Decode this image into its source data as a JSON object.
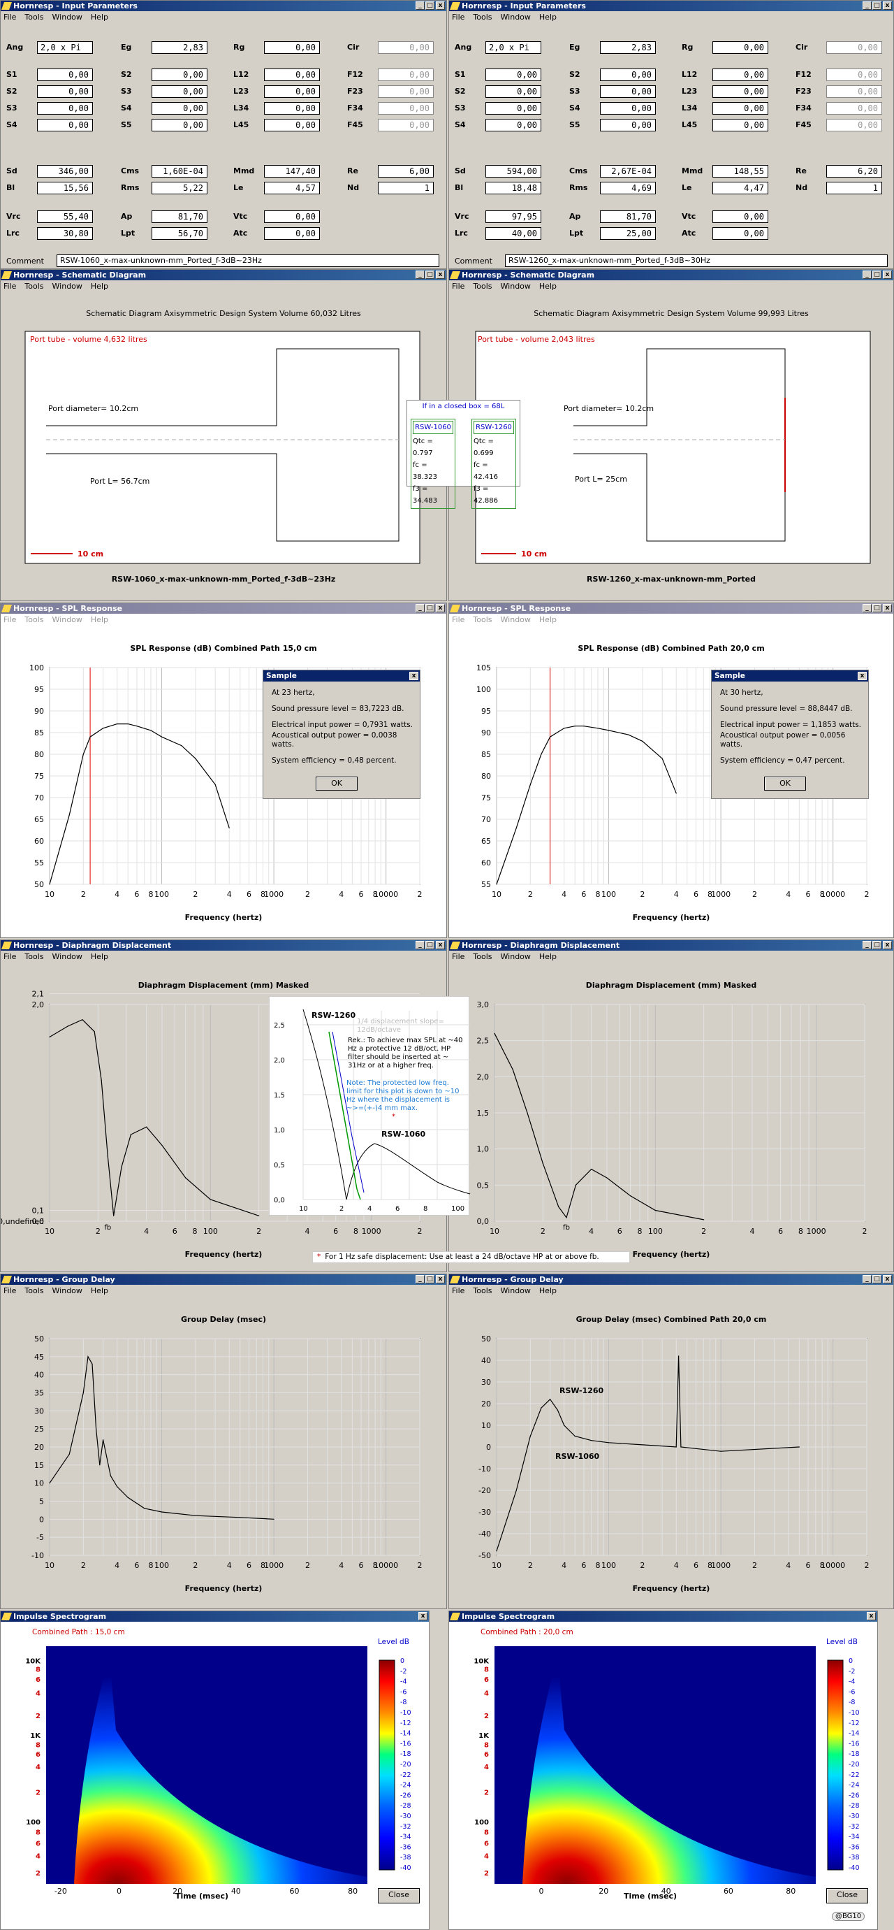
{
  "titles": {
    "input": "Hornresp - Input Parameters",
    "schem": "Hornresp - Schematic Diagram",
    "spl": "Hornresp - SPL Response",
    "disp": "Hornresp - Diaphragm Displacement",
    "gd": "Hornresp - Group Delay",
    "imp": "Impulse Spectrogram"
  },
  "menu": [
    "File",
    "Tools",
    "Window",
    "Help"
  ],
  "params_left": {
    "row1": [
      "Ang",
      "2,0 x Pi",
      "Eg",
      "2,83",
      "Rg",
      "0,00",
      "Cir",
      "0,00"
    ],
    "grid": [
      [
        "S1",
        "0,00",
        "S2",
        "0,00",
        "L12",
        "0,00",
        "F12",
        "0,00"
      ],
      [
        "S2",
        "0,00",
        "S3",
        "0,00",
        "L23",
        "0,00",
        "F23",
        "0,00"
      ],
      [
        "S3",
        "0,00",
        "S4",
        "0,00",
        "L34",
        "0,00",
        "F34",
        "0,00"
      ],
      [
        "S4",
        "0,00",
        "S5",
        "0,00",
        "L45",
        "0,00",
        "F45",
        "0,00"
      ]
    ],
    "drv": [
      [
        "Sd",
        "346,00",
        "Cms",
        "1,60E-04",
        "Mmd",
        "147,40",
        "Re",
        "6,00"
      ],
      [
        "Bl",
        "15,56",
        "Rms",
        "5,22",
        "Le",
        "4,57",
        "Nd",
        "1"
      ]
    ],
    "box": [
      [
        "Vrc",
        "55,40",
        "Ap",
        "81,70",
        "Vtc",
        "0,00"
      ],
      [
        "Lrc",
        "30,80",
        "Lpt",
        "56,70",
        "Atc",
        "0,00"
      ]
    ],
    "comment_label": "Comment",
    "comment": "RSW-1060_x-max-unknown-mm_Ported_f-3dB~23Hz"
  },
  "params_right": {
    "row1": [
      "Ang",
      "2,0 x Pi",
      "Eg",
      "2,83",
      "Rg",
      "0,00",
      "Cir",
      "0,00"
    ],
    "grid": [
      [
        "S1",
        "0,00",
        "S2",
        "0,00",
        "L12",
        "0,00",
        "F12",
        "0,00"
      ],
      [
        "S2",
        "0,00",
        "S3",
        "0,00",
        "L23",
        "0,00",
        "F23",
        "0,00"
      ],
      [
        "S3",
        "0,00",
        "S4",
        "0,00",
        "L34",
        "0,00",
        "F34",
        "0,00"
      ],
      [
        "S4",
        "0,00",
        "S5",
        "0,00",
        "L45",
        "0,00",
        "F45",
        "0,00"
      ]
    ],
    "drv": [
      [
        "Sd",
        "594,00",
        "Cms",
        "2,67E-04",
        "Mmd",
        "148,55",
        "Re",
        "6,20"
      ],
      [
        "Bl",
        "18,48",
        "Rms",
        "4,69",
        "Le",
        "4,47",
        "Nd",
        "1"
      ]
    ],
    "box": [
      [
        "Vrc",
        "97,95",
        "Ap",
        "81,70",
        "Vtc",
        "0,00"
      ],
      [
        "Lrc",
        "40,00",
        "Lpt",
        "25,00",
        "Atc",
        "0,00"
      ]
    ],
    "comment_label": "Comment",
    "comment": "RSW-1260_x-max-unknown-mm_Ported_f-3dB~30Hz"
  },
  "schem_left": {
    "header": "Schematic Diagram   Axisymmetric Design   System Volume 60,032 Litres",
    "port": "Port tube - volume 4,632 litres",
    "diam": "Port diameter=  10.2cm",
    "len": "Port L= 56.7cm",
    "scale": "10 cm",
    "caption": "RSW-1060_x-max-unknown-mm_Ported_f-3dB~23Hz"
  },
  "schem_right": {
    "header": "Schematic Diagram   Axisymmetric Design   System Volume 99,993 Litres",
    "port": "Port tube - volume 2,043 litres",
    "diam": "Port diameter=  10.2cm",
    "len": "Port L= 25cm",
    "scale": "10 cm",
    "caption": "RSW-1260_x-max-unknown-mm_Ported"
  },
  "closed_box": {
    "title": "If in a closed box = 68L",
    "cols": [
      {
        "name": "RSW-1060",
        "qtc": "Qtc = 0.797",
        "fc": "fc = 38.323",
        "f3": "f3 = 34.483"
      },
      {
        "name": "RSW-1260",
        "qtc": "Qtc = 0.699",
        "fc": "fc = 42.416",
        "f3": "f3 = 42.886"
      }
    ]
  },
  "spl_left": {
    "header": "SPL Response (dB)   Combined   Path 15,0 cm",
    "xlabel": "Frequency (hertz)",
    "dialog": {
      "title": "Sample",
      "l1": "At 23 hertz,",
      "l2": "Sound pressure level = 83,7223 dB.",
      "l3": "Electrical input power = 0,7931 watts.",
      "l4": "Acoustical output power = 0,0038 watts.",
      "l5": "System efficiency = 0,48 percent.",
      "ok": "OK"
    }
  },
  "spl_right": {
    "header": "SPL Response (dB)   Combined   Path 20,0 cm",
    "xlabel": "Frequency (hertz)",
    "dialog": {
      "title": "Sample",
      "l1": "At 30 hertz,",
      "l2": "Sound pressure level = 88,8447 dB.",
      "l3": "Electrical input power = 1,1853 watts.",
      "l4": "Acoustical output power = 0,0056 watts.",
      "l5": "System efficiency = 0,47 percent.",
      "ok": "OK"
    }
  },
  "disp_left": {
    "header": "Diaphragm Displacement (mm)   Masked",
    "xlabel": "Frequency (hertz)",
    "fb": "fb"
  },
  "disp_right": {
    "header": "Diaphragm Displacement (mm)   Masked",
    "xlabel": "Frequency (hertz)",
    "fb": "fb"
  },
  "overlay": {
    "l1260": "RSW-1260",
    "l1060": "RSW-1060",
    "slope": "1/4 displacement slope= 12dB/octave",
    "rek": "Rek.: To achieve max SPL at ~40 Hz a protective 12 dB/oct. HP filter should be inserted at ~ 31Hz or at a higher freq.",
    "note": "Note: The protected low freq. limit for this plot is down to ~10 Hz where the displacement is ~>=(+-)4 mm max.",
    "star": "*"
  },
  "footnote_star": "*",
  "footnote": "For 1 Hz safe displacement: Use at least a 24 dB/octave HP at or above fb.",
  "gd_left": {
    "header": "Group Delay (msec)",
    "xlabel": "Frequency (hertz)"
  },
  "gd_right": {
    "header": "Group Delay (msec)   Combined   Path 20,0 cm",
    "xlabel": "Frequency (hertz)",
    "l1260": "RSW-1260",
    "l1060": "RSW-1060"
  },
  "imp_left": {
    "sub": "Combined    Path : 15,0 cm",
    "xlabel": "Time (msec)",
    "level": "Level   dB",
    "close": "Close"
  },
  "imp_right": {
    "sub": "Combined    Path : 20,0 cm",
    "xlabel": "Time (msec)",
    "level": "Level   dB",
    "close": "Close"
  },
  "watermark": "@BG10",
  "colorbar_ticks": [
    "0",
    "-2",
    "-4",
    "-6",
    "-8",
    "-10",
    "-12",
    "-14",
    "-16",
    "-18",
    "-20",
    "-22",
    "-24",
    "-26",
    "-28",
    "-30",
    "-32",
    "-34",
    "-36",
    "-38",
    "-40"
  ],
  "chart_data": [
    {
      "type": "line",
      "title": "SPL Response (dB)",
      "xscale": "log",
      "xlim": [
        10,
        20000
      ],
      "ylim": [
        50,
        100
      ],
      "x": [
        10,
        15,
        20,
        23,
        30,
        40,
        50,
        60,
        80,
        100,
        150,
        200,
        300,
        400
      ],
      "series": [
        {
          "values": [
            50,
            66,
            80,
            84,
            86,
            87,
            87,
            86.5,
            85.5,
            84,
            82,
            79,
            73,
            63
          ]
        }
      ]
    },
    {
      "type": "line",
      "title": "SPL Response (dB)",
      "xscale": "log",
      "xlim": [
        10,
        20000
      ],
      "ylim": [
        55,
        105
      ],
      "x": [
        10,
        15,
        20,
        25,
        30,
        40,
        50,
        60,
        80,
        100,
        150,
        200,
        300,
        400
      ],
      "series": [
        {
          "values": [
            55,
            68,
            78,
            85,
            89,
            91,
            91.5,
            91.5,
            91,
            90.5,
            89.5,
            88,
            84,
            76
          ]
        }
      ]
    },
    {
      "type": "line",
      "title": "Diaphragm Displacement (mm)",
      "xscale": "log",
      "xlim": [
        10,
        2000
      ],
      "ylim": [
        0,
        2
      ],
      "x": [
        10,
        13,
        16,
        19,
        21,
        23,
        25,
        28,
        32,
        40,
        50,
        70,
        100,
        200
      ],
      "series": [
        {
          "values": [
            1.7,
            1.8,
            1.86,
            1.75,
            1.3,
            0.6,
            0.05,
            0.5,
            0.8,
            0.87,
            0.7,
            0.4,
            0.2,
            0.05
          ]
        }
      ]
    },
    {
      "type": "line",
      "title": "Diaphragm Displacement (mm)",
      "xscale": "log",
      "xlim": [
        10,
        2000
      ],
      "ylim": [
        0,
        3
      ],
      "x": [
        10,
        13,
        16,
        20,
        25,
        28,
        32,
        40,
        50,
        70,
        100,
        200
      ],
      "series": [
        {
          "values": [
            2.6,
            2.1,
            1.5,
            0.8,
            0.2,
            0.05,
            0.5,
            0.72,
            0.6,
            0.35,
            0.15,
            0.02
          ]
        }
      ]
    },
    {
      "type": "line",
      "title": "Group Delay (msec)",
      "xscale": "log",
      "xlim": [
        10,
        20000
      ],
      "ylim": [
        -10,
        50
      ],
      "x": [
        10,
        15,
        20,
        22,
        24,
        26,
        28,
        30,
        35,
        40,
        50,
        70,
        100,
        200,
        500,
        1000
      ],
      "series": [
        {
          "values": [
            10,
            18,
            35,
            45,
            43,
            25,
            15,
            22,
            12,
            9,
            6,
            3,
            2,
            1,
            0.5,
            0
          ]
        }
      ]
    },
    {
      "type": "line",
      "title": "Group Delay (msec)",
      "xscale": "log",
      "xlim": [
        10,
        20000
      ],
      "ylim": [
        -50,
        50
      ],
      "x": [
        10,
        15,
        20,
        25,
        30,
        35,
        40,
        50,
        70,
        100,
        200,
        400,
        420,
        440,
        1000,
        5000
      ],
      "series": [
        {
          "values": [
            -48,
            -20,
            5,
            18,
            22,
            17,
            10,
            5,
            3,
            2,
            1,
            0,
            42,
            0,
            -2,
            0
          ]
        }
      ]
    }
  ]
}
